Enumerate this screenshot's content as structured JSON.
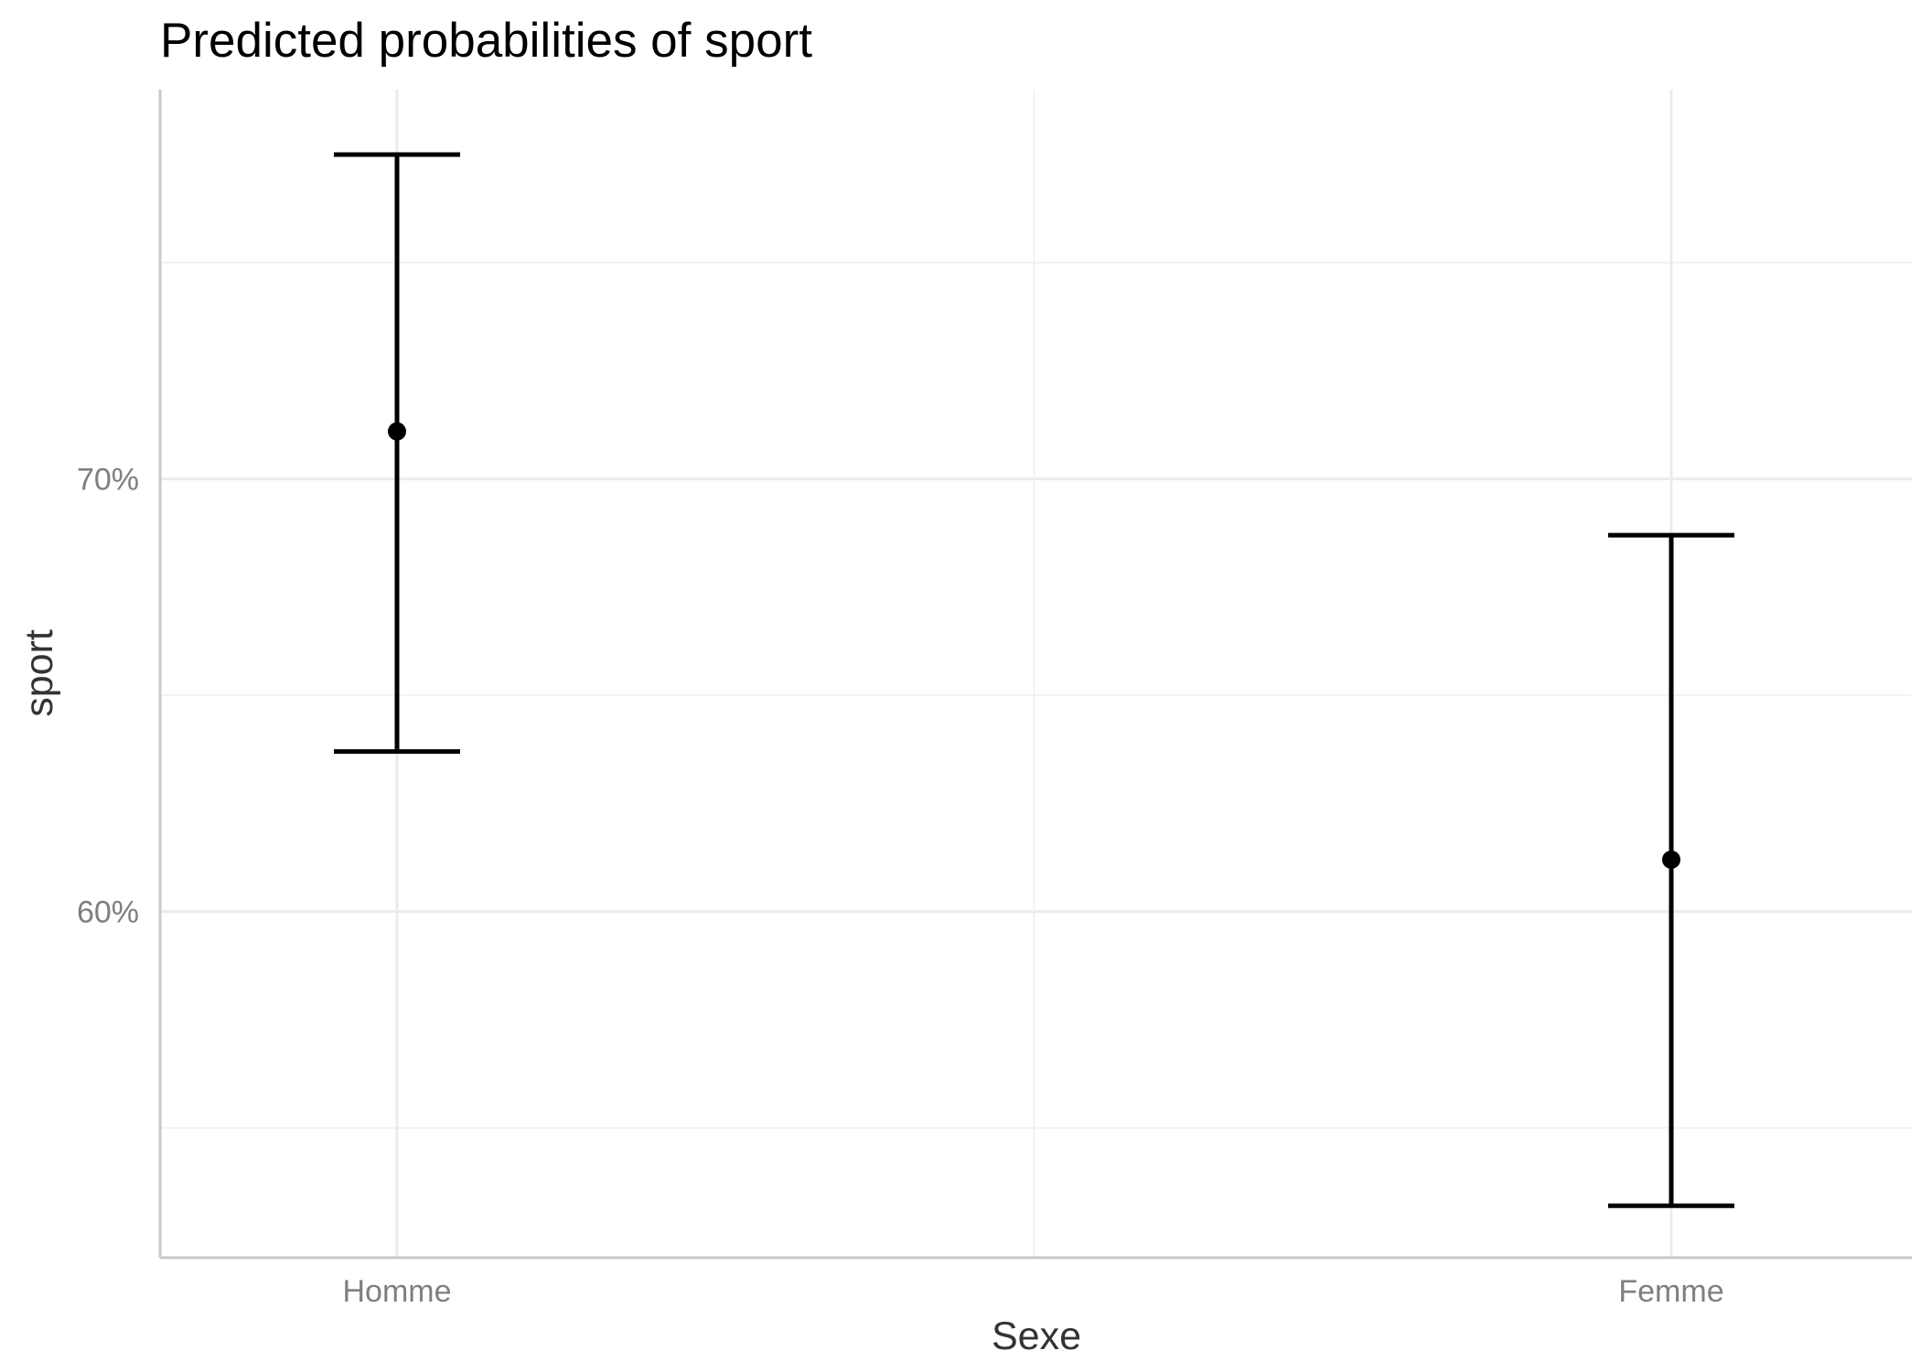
{
  "chart_data": {
    "type": "scatter",
    "title": "Predicted probabilities of sport",
    "xlabel": "Sexe",
    "ylabel": "sport",
    "categories": [
      "Homme",
      "Femme"
    ],
    "values": [
      0.711,
      0.612
    ],
    "ci_low": [
      0.637,
      0.532
    ],
    "ci_high": [
      0.775,
      0.687
    ],
    "ylim": [
      0.52,
      0.79
    ],
    "yticks": [
      0.6,
      0.7
    ],
    "ytick_labels": [
      "60%",
      "70%"
    ],
    "y_minor_ticks": [
      0.55,
      0.65,
      0.75
    ],
    "grid": true,
    "legend": "none",
    "colors": {
      "marks": "#000000",
      "grid": "#ebebeb",
      "tick_text": "#7f7f7f"
    }
  }
}
